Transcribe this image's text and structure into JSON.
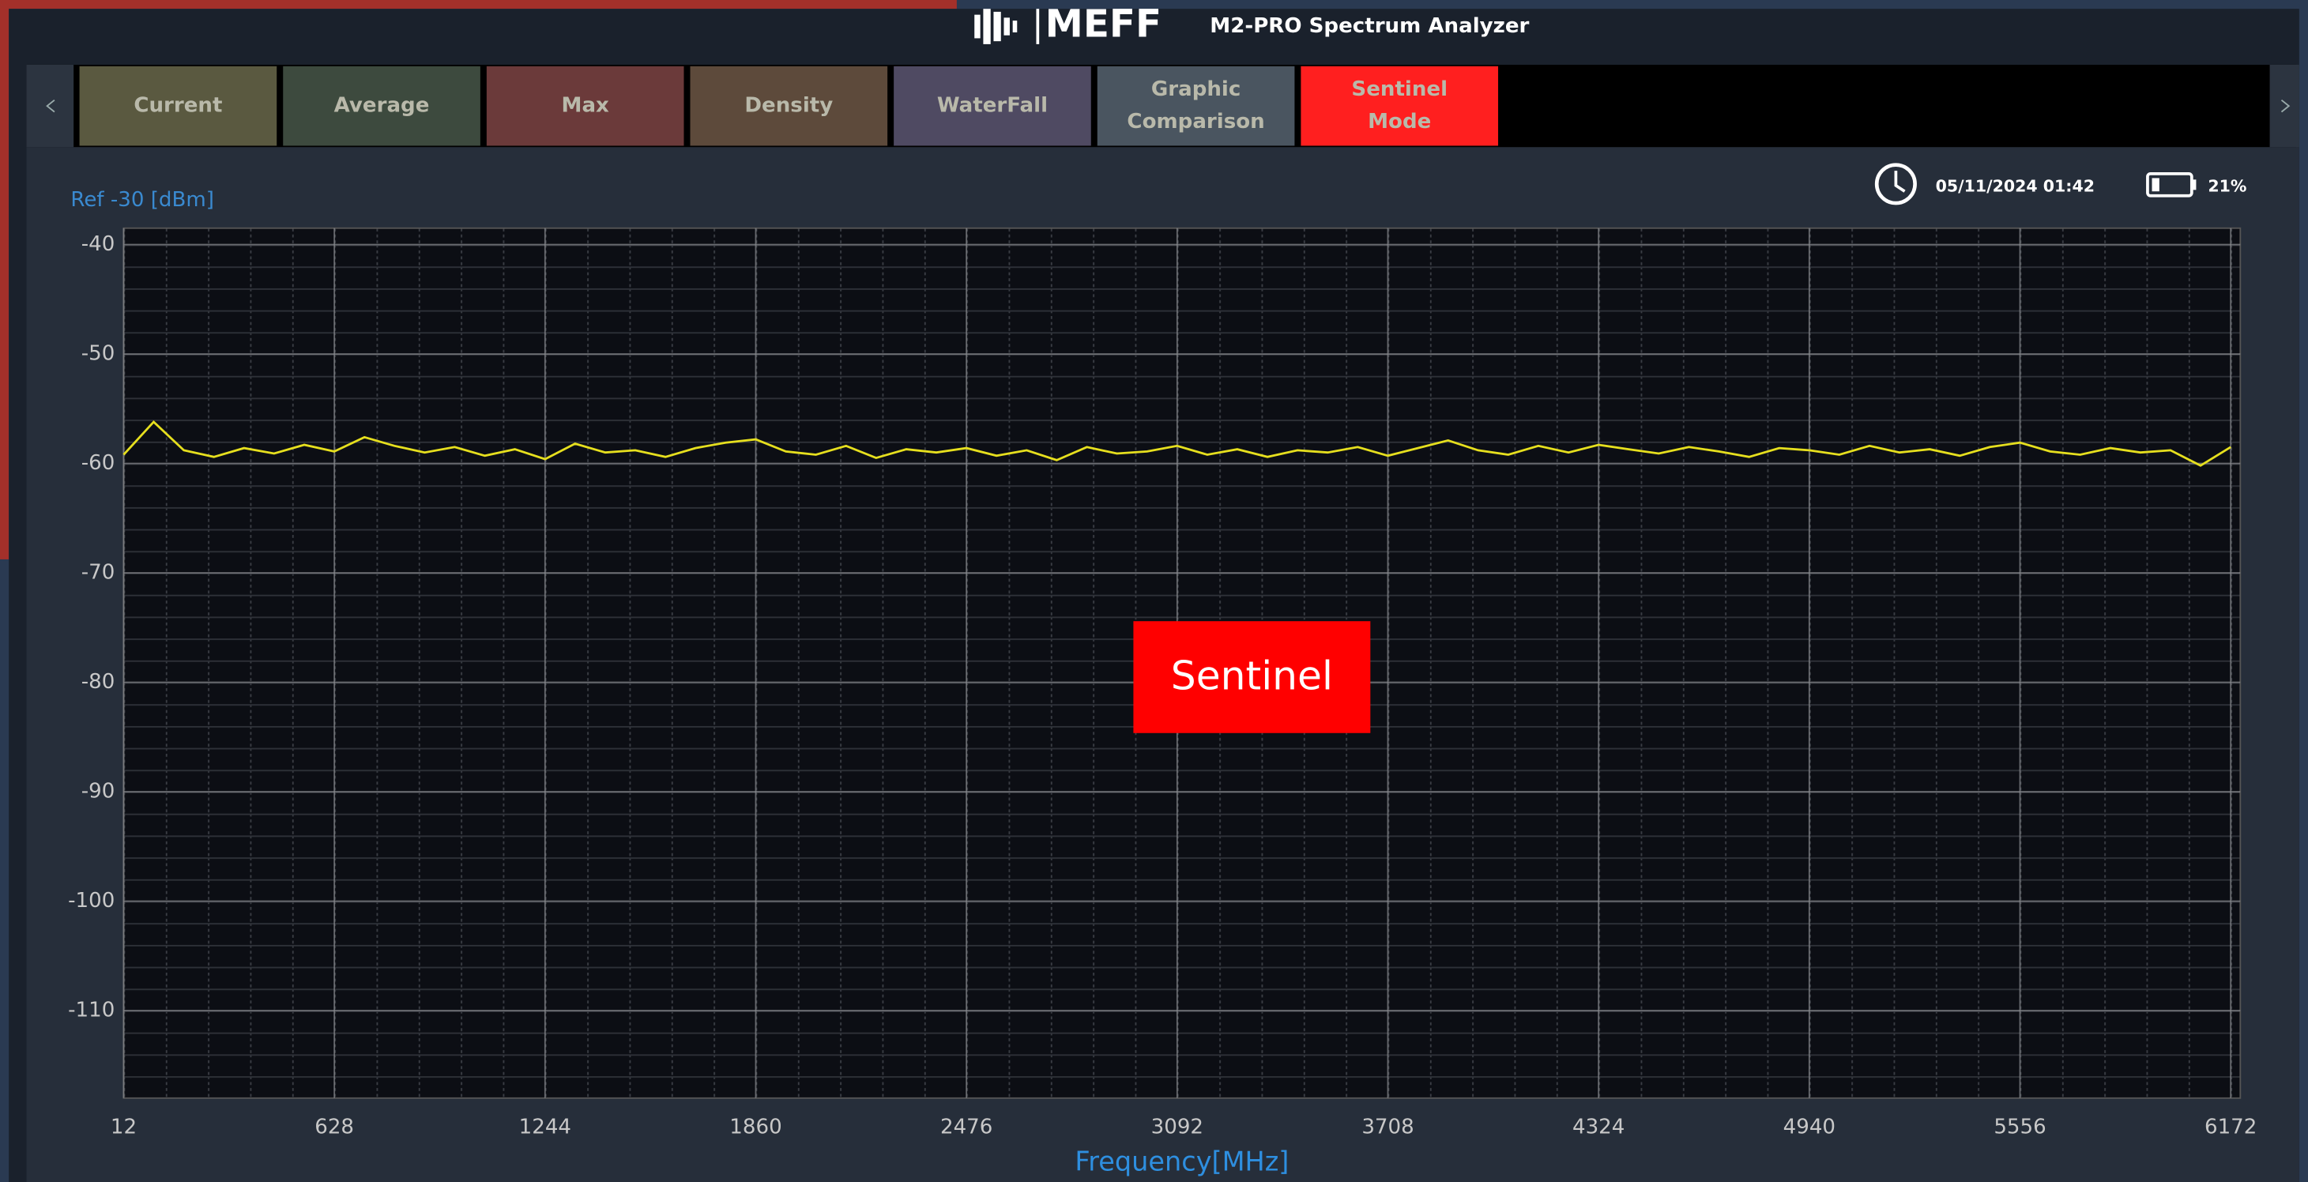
{
  "header": {
    "logo": "MEFF",
    "title": "M2-PRO Spectrum Analyzer"
  },
  "tabs": [
    [
      "Current"
    ],
    [
      "Average"
    ],
    [
      "Max"
    ],
    [
      "Density"
    ],
    [
      "WaterFall"
    ],
    [
      "Graphic",
      "Comparison"
    ],
    [
      "Sentinel",
      "Mode"
    ]
  ],
  "status": {
    "datetime": "05/11/2024 01:42",
    "battery": "21%"
  },
  "chart_data": {
    "type": "line",
    "ref_label": "Ref  -30 [dBm]",
    "xlabel": "Frequency[MHz]",
    "annotation": "Sentinel",
    "color": "#e6df1e",
    "grid": true,
    "xlim": [
      12,
      6200
    ],
    "ylim": [
      -118,
      -38.5
    ],
    "xticks": [
      12,
      628,
      1244,
      1860,
      2476,
      3092,
      3708,
      4324,
      4940,
      5556,
      6172
    ],
    "yticks": [
      -40,
      -50,
      -60,
      -70,
      -80,
      -90,
      -100,
      -110
    ],
    "x": [
      12,
      100,
      188,
      276,
      364,
      452,
      540,
      628,
      716,
      804,
      892,
      980,
      1068,
      1156,
      1244,
      1332,
      1420,
      1508,
      1596,
      1684,
      1772,
      1860,
      1948,
      2036,
      2124,
      2212,
      2300,
      2388,
      2476,
      2564,
      2652,
      2740,
      2828,
      2916,
      3004,
      3092,
      3180,
      3268,
      3356,
      3444,
      3532,
      3620,
      3708,
      3796,
      3884,
      3972,
      4060,
      4148,
      4236,
      4324,
      4412,
      4500,
      4588,
      4676,
      4764,
      4852,
      4940,
      5028,
      5116,
      5204,
      5292,
      5380,
      5468,
      5556,
      5644,
      5732,
      5820,
      5908,
      5996,
      6084,
      6172
    ],
    "values": [
      -59.2,
      -56.2,
      -58.8,
      -59.4,
      -58.6,
      -59.1,
      -58.3,
      -58.9,
      -57.6,
      -58.4,
      -59.0,
      -58.5,
      -59.3,
      -58.7,
      -59.6,
      -58.2,
      -59.0,
      -58.8,
      -59.4,
      -58.6,
      -58.1,
      -57.8,
      -58.9,
      -59.2,
      -58.4,
      -59.5,
      -58.7,
      -59.0,
      -58.6,
      -59.3,
      -58.8,
      -59.7,
      -58.5,
      -59.1,
      -58.9,
      -58.4,
      -59.2,
      -58.7,
      -59.4,
      -58.8,
      -59.0,
      -58.5,
      -59.3,
      -58.6,
      -57.9,
      -58.8,
      -59.2,
      -58.4,
      -59.0,
      -58.3,
      -58.7,
      -59.1,
      -58.5,
      -58.9,
      -59.4,
      -58.6,
      -58.8,
      -59.2,
      -58.4,
      -59.0,
      -58.7,
      -59.3,
      -58.5,
      -58.1,
      -58.9,
      -59.2,
      -58.6,
      -59.0,
      -58.8,
      -60.2,
      -58.5
    ]
  }
}
